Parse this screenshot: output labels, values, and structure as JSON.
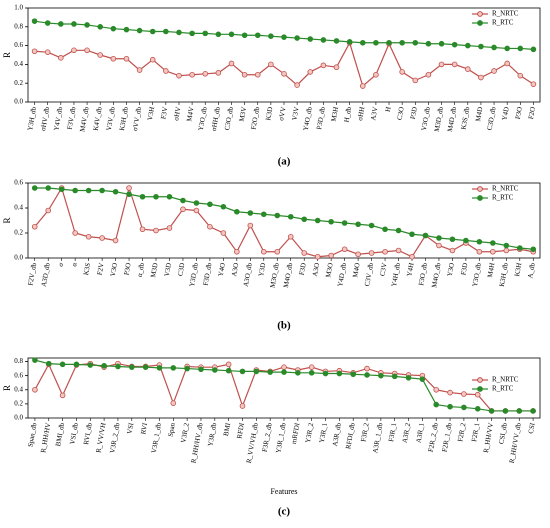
{
  "chart_data": [
    {
      "type": "line",
      "ylabel": "R",
      "caption": "(a)",
      "ylim": [
        0,
        1
      ],
      "yticks": [
        {
          "value": 0,
          "label": "0.0"
        },
        {
          "value": 0.2,
          "label": "0.2"
        },
        {
          "value": 0.4,
          "label": "0.4"
        },
        {
          "value": 0.6,
          "label": "0.6"
        },
        {
          "value": 0.8,
          "label": "0.8"
        },
        {
          "value": 1,
          "label": "1.0"
        }
      ],
      "legend": "upper right",
      "categories": [
        "Y3H_db",
        "σHV_db",
        "Y4V_db",
        "F3V_db",
        "M4V_db",
        "K4V_db",
        "V3V_db",
        "K3H_db",
        "σVV_db",
        "V3H",
        "F3V",
        "σHV",
        "M4V",
        "Y3O_db",
        "σHH_db",
        "C3O_db",
        "M3V",
        "F2O_db",
        "K3D",
        "σVV",
        "V3V",
        "Y4O_db",
        "P3D_db",
        "M3H",
        "H_db",
        "σHH",
        "A3V",
        "H",
        "C3O",
        "P3D",
        "V3O_db",
        "M3D_db",
        "M4D_db",
        "K3S_db",
        "M4D",
        "C3D_db",
        "Y4D",
        "P3O",
        "F2O"
      ],
      "series": [
        {
          "name": "R_NRTC",
          "color": "#c0504d",
          "values": [
            0.54,
            0.53,
            0.47,
            0.55,
            0.55,
            0.5,
            0.46,
            0.46,
            0.34,
            0.45,
            0.33,
            0.28,
            0.29,
            0.3,
            0.31,
            0.41,
            0.29,
            0.29,
            0.4,
            0.3,
            0.18,
            0.32,
            0.39,
            0.37,
            0.63,
            0.17,
            0.29,
            0.62,
            0.32,
            0.23,
            0.29,
            0.4,
            0.4,
            0.35,
            0.26,
            0.33,
            0.41,
            0.28,
            0.19
          ]
        },
        {
          "name": "R_RTC",
          "color": "#2a8a2a",
          "values": [
            0.86,
            0.84,
            0.83,
            0.83,
            0.82,
            0.8,
            0.78,
            0.77,
            0.76,
            0.75,
            0.75,
            0.74,
            0.73,
            0.73,
            0.72,
            0.72,
            0.71,
            0.71,
            0.7,
            0.69,
            0.68,
            0.67,
            0.66,
            0.65,
            0.64,
            0.63,
            0.63,
            0.63,
            0.63,
            0.63,
            0.62,
            0.62,
            0.61,
            0.6,
            0.59,
            0.58,
            0.57,
            0.57,
            0.56
          ]
        }
      ]
    },
    {
      "type": "line",
      "ylabel": "R",
      "caption": "(b)",
      "ylim": [
        0,
        0.6
      ],
      "yticks": [
        {
          "value": 0,
          "label": "0.0"
        },
        {
          "value": 0.2,
          "label": "0.2"
        },
        {
          "value": 0.4,
          "label": "0.4"
        },
        {
          "value": 0.6,
          "label": "0.6"
        }
      ],
      "legend": "upper right",
      "categories": [
        "F2V_db",
        "A3D_db",
        "σ",
        "α",
        "K3S",
        "F2V",
        "V3O",
        "P3O",
        "α_db",
        "M3D",
        "V3D",
        "C3D",
        "Y3D_db",
        "F3D_db",
        "Y4O",
        "A3O",
        "A3O_db",
        "Y3D",
        "M3O_db",
        "M4O_db",
        "F3D",
        "A3O",
        "M3O",
        "Y4D_db",
        "M4O",
        "C3V_db",
        "C3V",
        "Y4H_db",
        "Y4H",
        "F3O_db",
        "M4O_db",
        "Y3O",
        "F3D",
        "Y3O_db",
        "M4H",
        "K3H_db",
        "K3H",
        "A_db"
      ],
      "series": [
        {
          "name": "R_NRTC",
          "color": "#c0504d",
          "values": [
            0.25,
            0.38,
            0.56,
            0.2,
            0.17,
            0.16,
            0.14,
            0.56,
            0.23,
            0.22,
            0.24,
            0.39,
            0.38,
            0.25,
            0.2,
            0.05,
            0.26,
            0.05,
            0.05,
            0.17,
            0.04,
            0.01,
            0.02,
            0.07,
            0.03,
            0.04,
            0.05,
            0.06,
            0.01,
            0.18,
            0.1,
            0.06,
            0.12,
            0.05,
            0.05,
            0.06,
            0.07,
            0.05
          ]
        },
        {
          "name": "R_RTC",
          "color": "#2a8a2a",
          "values": [
            0.56,
            0.56,
            0.55,
            0.54,
            0.54,
            0.54,
            0.53,
            0.51,
            0.49,
            0.49,
            0.49,
            0.46,
            0.44,
            0.43,
            0.41,
            0.37,
            0.36,
            0.35,
            0.34,
            0.33,
            0.31,
            0.3,
            0.29,
            0.28,
            0.27,
            0.26,
            0.23,
            0.22,
            0.19,
            0.18,
            0.16,
            0.15,
            0.14,
            0.13,
            0.12,
            0.1,
            0.08,
            0.07
          ]
        }
      ]
    },
    {
      "type": "line",
      "ylabel": "R",
      "xlabel": "Features",
      "caption": "(c)",
      "ylim": [
        0,
        0.85
      ],
      "yticks": [
        {
          "value": 0,
          "label": "0.0"
        },
        {
          "value": 0.2,
          "label": "0.2"
        },
        {
          "value": 0.4,
          "label": "0.4"
        },
        {
          "value": 0.6,
          "label": "0.6"
        },
        {
          "value": 0.8,
          "label": "0.8"
        }
      ],
      "legend": "center right",
      "categories": [
        "Span_db",
        "R_HH/HV",
        "BMI_db",
        "VSI_db",
        "RVI_db",
        "R_VV/VH",
        "V3R_2_db",
        "VSI",
        "RVI",
        "V3R_1_db",
        "Span",
        "V3R_2",
        "R_HH/HV_db",
        "Y3R_db",
        "BMI",
        "RFDI",
        "R_VV/VH_db",
        "F3R_2_db",
        "Y3R_1_db",
        "mRFDI",
        "Y3R_2",
        "Y3R_1",
        "A3R_db",
        "RFDI_db",
        "F3R_2",
        "A3R_1_db",
        "F3R_1",
        "A3R_2",
        "A3R_1",
        "F2R_2_db",
        "F2R_1_db",
        "F2R_2",
        "F2R_1",
        "R_HH/VV",
        "CSI_db",
        "R_HH/VV_db",
        "CSI"
      ],
      "series": [
        {
          "name": "R_NRTC",
          "color": "#c0504d",
          "values": [
            0.4,
            0.76,
            0.32,
            0.75,
            0.77,
            0.72,
            0.77,
            0.73,
            0.73,
            0.75,
            0.21,
            0.73,
            0.72,
            0.72,
            0.76,
            0.17,
            0.68,
            0.66,
            0.72,
            0.68,
            0.72,
            0.66,
            0.67,
            0.64,
            0.7,
            0.64,
            0.63,
            0.61,
            0.6,
            0.4,
            0.36,
            0.34,
            0.33,
            0.1,
            0.1,
            0.1,
            0.1
          ]
        },
        {
          "name": "R_RTC",
          "color": "#2a8a2a",
          "values": [
            0.82,
            0.77,
            0.76,
            0.76,
            0.75,
            0.74,
            0.73,
            0.72,
            0.72,
            0.71,
            0.71,
            0.7,
            0.69,
            0.68,
            0.67,
            0.66,
            0.66,
            0.65,
            0.65,
            0.64,
            0.64,
            0.63,
            0.63,
            0.62,
            0.61,
            0.6,
            0.59,
            0.57,
            0.55,
            0.19,
            0.16,
            0.15,
            0.13,
            0.1,
            0.1,
            0.1,
            0.1
          ]
        }
      ]
    }
  ]
}
